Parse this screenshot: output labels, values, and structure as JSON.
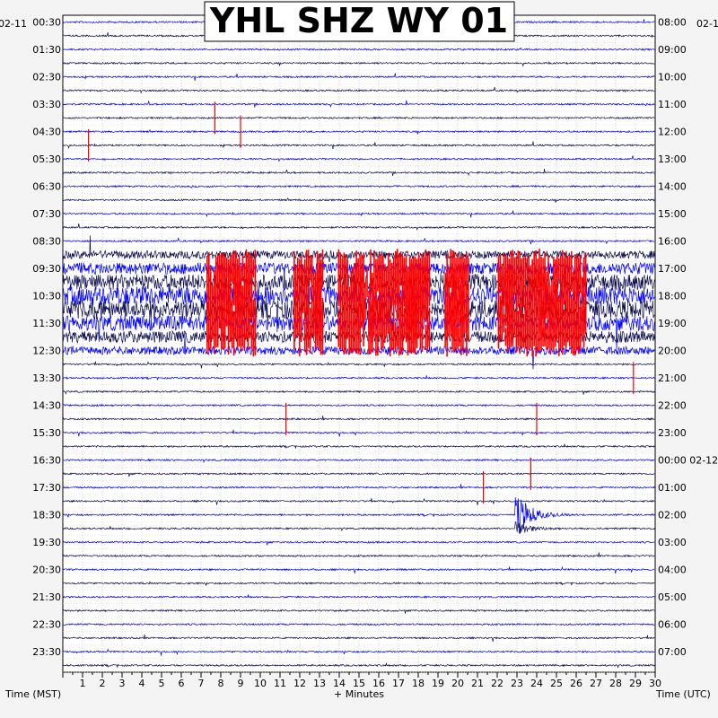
{
  "chart_data": {
    "type": "helicorder",
    "title": "YHL SHZ WY 01",
    "date_left": "02-11",
    "date_right": "02-1",
    "date_right_rollover": "02-12",
    "xlabel": "+ Minutes",
    "ylabel_left": "Time (MST)",
    "ylabel_right": "Time (UTC)",
    "xlim": [
      0,
      30
    ],
    "x_ticks": [
      "1",
      "2",
      "3",
      "4",
      "5",
      "6",
      "7",
      "8",
      "9",
      "10",
      "11",
      "12",
      "13",
      "14",
      "15",
      "16",
      "17",
      "18",
      "19",
      "20",
      "21",
      "22",
      "23",
      "24",
      "25",
      "26",
      "27",
      "28",
      "29",
      "30"
    ],
    "left_time_labels": [
      "00:30",
      "01:30",
      "02:30",
      "03:30",
      "04:30",
      "05:30",
      "06:30",
      "07:30",
      "08:30",
      "09:30",
      "10:30",
      "11:30",
      "12:30",
      "13:30",
      "14:30",
      "15:30",
      "16:30",
      "17:30",
      "18:30",
      "19:30",
      "20:30",
      "21:30",
      "22:30",
      "23:30"
    ],
    "right_time_labels": [
      "08:00",
      "09:00",
      "10:00",
      "11:00",
      "12:00",
      "13:00",
      "14:00",
      "15:00",
      "16:00",
      "17:00",
      "18:00",
      "19:00",
      "20:00",
      "21:00",
      "22:00",
      "23:00",
      "00:00",
      "01:00",
      "02:00",
      "03:00",
      "04:00",
      "05:00",
      "06:00",
      "07:00"
    ],
    "trace_colors": [
      "#0000ff",
      "#0a0a50"
    ],
    "clip_color": "#ff0000",
    "grid": true,
    "traces_per_hour": 2,
    "noisy_interval": {
      "start_line": 17,
      "end_line": 24
    },
    "events": [
      {
        "line": 36,
        "start_min": 22.9,
        "amplitude": "large",
        "note": "earthquake with coda"
      },
      {
        "line": 37,
        "start_min": 22.9,
        "amplitude": "moderate"
      },
      {
        "line": 19,
        "start_min": 19.0,
        "amplitude": "small"
      }
    ],
    "clipped_spans_min": [
      [
        7.3,
        9.8
      ],
      [
        11.7,
        13.2
      ],
      [
        13.9,
        18.6
      ],
      [
        19.3,
        20.6
      ],
      [
        22.0,
        26.5
      ]
    ]
  }
}
